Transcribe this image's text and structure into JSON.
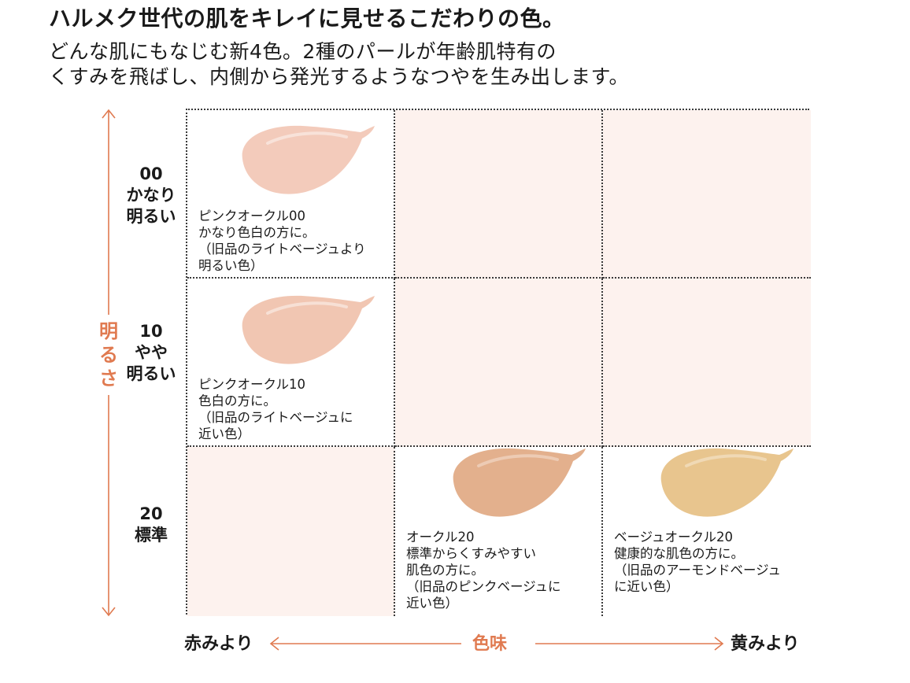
{
  "header": {
    "title": "ハルメク世代の肌をキレイに見せるこだわりの色。",
    "subtitle_lines": [
      "どんな肌にもなじむ新4色。2種のパールが年齢肌特有の",
      "くすみを飛ばし、内側から発光するようなつやを生み出します。"
    ]
  },
  "axes": {
    "vertical_label_chars": [
      "明",
      "る",
      "さ"
    ],
    "horizontal_label": "色味",
    "left_label": "赤みより",
    "right_label": "黄みより",
    "accent_color": "#e07a50"
  },
  "rows": [
    {
      "code": "00",
      "desc_lines": [
        "かなり",
        "明るい"
      ]
    },
    {
      "code": "10",
      "desc_lines": [
        "やや",
        "明るい"
      ]
    },
    {
      "code": "20",
      "desc_lines": [
        "標準"
      ]
    }
  ],
  "products": {
    "pink_ochre_00": {
      "lines": [
        "ピンクオークル00",
        "かなり色白の方に。",
        "（旧品のライトベージュより",
        "明るい色）"
      ],
      "swatch_color": "#f3cbbb"
    },
    "pink_ochre_10": {
      "lines": [
        "ピンクオークル10",
        "色白の方に。",
        "（旧品のライトベージュに",
        "近い色）"
      ],
      "swatch_color": "#f1c6b2"
    },
    "ochre_20": {
      "lines": [
        "オークル20",
        "標準からくすみやすい",
        "肌色の方に。",
        "（旧品のピンクベージュに",
        "近い色）"
      ],
      "swatch_color": "#e3b08d"
    },
    "beige_ochre_20": {
      "lines": [
        "ベージュオークル20",
        "健康的な肌色の方に。",
        "（旧品のアーモンドベージュ",
        "に近い色）"
      ],
      "swatch_color": "#e8c58e"
    }
  },
  "empty_cell_color": "#fdf2ee"
}
